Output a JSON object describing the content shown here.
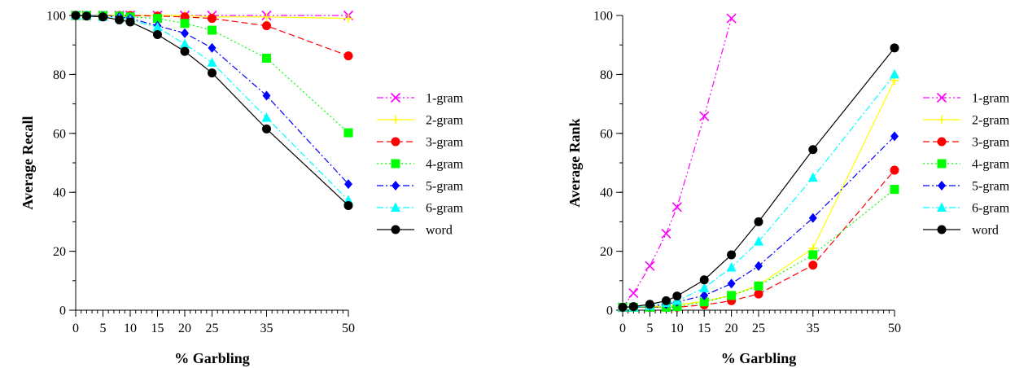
{
  "chart_data": [
    {
      "type": "line",
      "title": "",
      "xlabel": "% Garbling",
      "ylabel": "Average Recall",
      "xlim": [
        0,
        50
      ],
      "ylim": [
        0,
        100
      ],
      "x_ticks": [
        0,
        5,
        10,
        15,
        20,
        25,
        35,
        50
      ],
      "y_ticks": [
        0,
        20,
        40,
        60,
        80,
        100
      ],
      "legend_position": "right",
      "x": [
        0,
        2,
        5,
        8,
        10,
        15,
        20,
        25,
        35,
        50
      ],
      "series": [
        {
          "name": "1-gram",
          "color": "#ff00ff",
          "marker": "x",
          "dash": "dash-dot-dot",
          "values": [
            100,
            100,
            100,
            100,
            100,
            100,
            100,
            100,
            100,
            100
          ]
        },
        {
          "name": "2-gram",
          "color": "#ffff00",
          "marker": "plus",
          "dash": "solid",
          "values": [
            100,
            100,
            100,
            100,
            100,
            100,
            100,
            99.5,
            99.5,
            99
          ]
        },
        {
          "name": "3-gram",
          "color": "#ff0000",
          "marker": "circle",
          "dash": "dash",
          "values": [
            100,
            100,
            100,
            100,
            100,
            99.8,
            99.5,
            99,
            96.5,
            86.3
          ]
        },
        {
          "name": "4-gram",
          "color": "#00ff00",
          "marker": "square",
          "dash": "dot",
          "values": [
            100,
            100,
            100,
            99.8,
            99.5,
            99,
            97.3,
            95,
            85.5,
            60.2
          ]
        },
        {
          "name": "5-gram",
          "color": "#0000ff",
          "marker": "diamond",
          "dash": "dash-dot",
          "values": [
            100,
            100,
            99.8,
            99.5,
            99,
            96.5,
            94,
            89,
            72.8,
            42.8
          ]
        },
        {
          "name": "6-gram",
          "color": "#00ffff",
          "marker": "triangle",
          "dash": "dash-dot",
          "values": [
            100,
            100,
            99.5,
            99,
            98.5,
            96,
            90.3,
            84,
            65.3,
            37.3
          ]
        },
        {
          "name": "word",
          "color": "#000000",
          "marker": "circle",
          "dash": "solid",
          "values": [
            100,
            99.8,
            99.5,
            98.5,
            97.8,
            93.5,
            87.8,
            80.5,
            61.5,
            35.5
          ]
        }
      ]
    },
    {
      "type": "line",
      "title": "",
      "xlabel": "% Garbling",
      "ylabel": "Average Rank",
      "xlim": [
        0,
        50
      ],
      "ylim": [
        0,
        100
      ],
      "x_ticks": [
        0,
        5,
        10,
        15,
        20,
        25,
        35,
        50
      ],
      "y_ticks": [
        0,
        20,
        40,
        60,
        80,
        100
      ],
      "legend_position": "right",
      "x": [
        0,
        2,
        5,
        8,
        10,
        15,
        20,
        25,
        35,
        50
      ],
      "series": [
        {
          "name": "1-gram",
          "color": "#ff00ff",
          "marker": "x",
          "dash": "dash-dot-dot",
          "values": [
            1,
            5.8,
            15,
            26,
            35,
            65.8,
            99,
            null,
            null,
            null
          ]
        },
        {
          "name": "2-gram",
          "color": "#ffff00",
          "marker": "plus",
          "dash": "solid",
          "values": [
            1,
            1,
            1.2,
            1.5,
            1.8,
            3,
            5,
            8.5,
            21,
            78
          ]
        },
        {
          "name": "3-gram",
          "color": "#ff0000",
          "marker": "circle",
          "dash": "dash",
          "values": [
            1,
            1,
            1,
            1,
            1,
            1.8,
            3.2,
            5.5,
            15.3,
            47.5
          ]
        },
        {
          "name": "4-gram",
          "color": "#00ff00",
          "marker": "square",
          "dash": "dot",
          "values": [
            1,
            1,
            1,
            1,
            1.2,
            2.8,
            5,
            8.2,
            18.8,
            41
          ]
        },
        {
          "name": "5-gram",
          "color": "#0000ff",
          "marker": "diamond",
          "dash": "dash-dot",
          "values": [
            1,
            1,
            1.3,
            2,
            2.8,
            5,
            9,
            15,
            31.3,
            59
          ]
        },
        {
          "name": "6-gram",
          "color": "#00ffff",
          "marker": "triangle",
          "dash": "dash-dot",
          "values": [
            1,
            1,
            1.5,
            2.5,
            3.2,
            7.5,
            14.5,
            23.3,
            45,
            80
          ]
        },
        {
          "name": "word",
          "color": "#000000",
          "marker": "circle",
          "dash": "solid",
          "values": [
            1,
            1.2,
            2,
            3.2,
            4.8,
            10.3,
            18.8,
            30,
            54.5,
            89
          ]
        }
      ]
    }
  ]
}
